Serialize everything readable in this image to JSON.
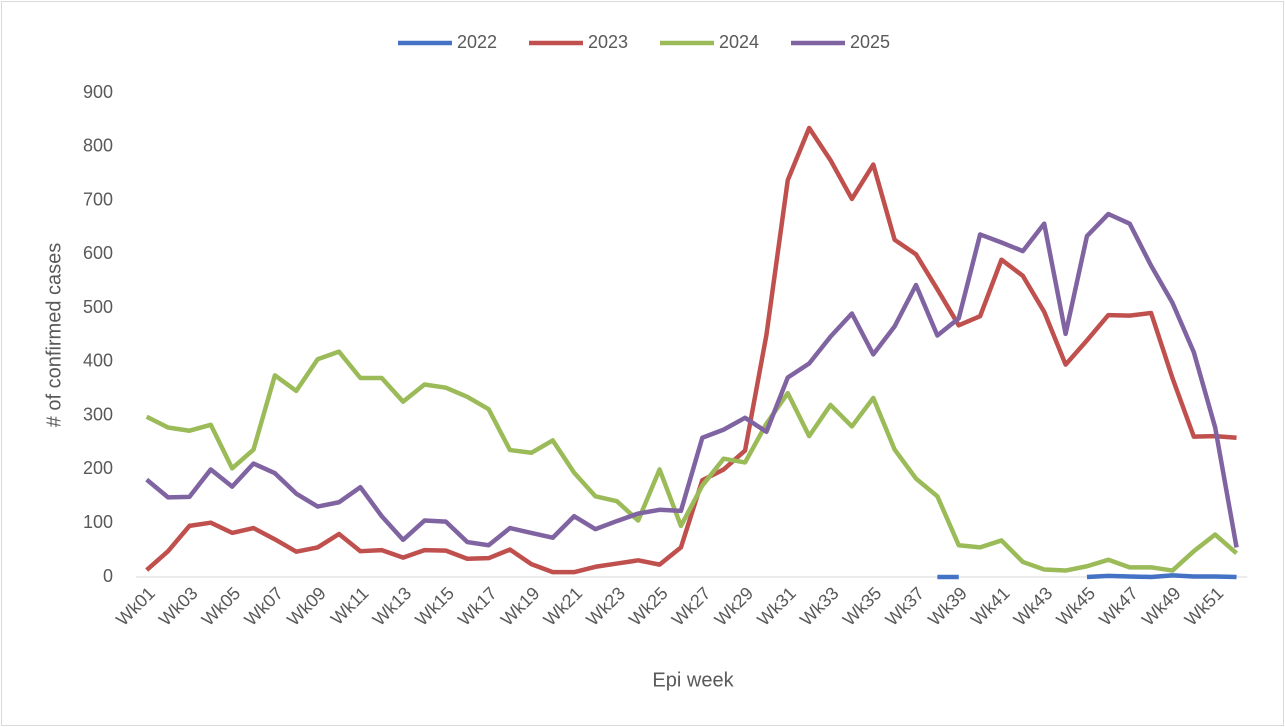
{
  "chart_data": {
    "type": "line",
    "x_label": "Epi week",
    "y_label": "# of confirmed cases",
    "categories": [
      "Wk01",
      null,
      "Wk03",
      null,
      "Wk05",
      null,
      "Wk07",
      null,
      "Wk09",
      null,
      "Wk11",
      null,
      "Wk13",
      null,
      "Wk15",
      null,
      "Wk17",
      null,
      "Wk19",
      null,
      "Wk21",
      null,
      "Wk23",
      null,
      "Wk25",
      null,
      "Wk27",
      null,
      "Wk29",
      null,
      "Wk31",
      null,
      "Wk33",
      null,
      "Wk35",
      null,
      "Wk37",
      null,
      "Wk39",
      null,
      "Wk41",
      null,
      "Wk43",
      null,
      "Wk45",
      null,
      "Wk47",
      null,
      "Wk49",
      null,
      "Wk51",
      null
    ],
    "series": [
      {
        "name": "2022",
        "color": "#4472c4",
        "values": [
          null,
          null,
          null,
          null,
          null,
          null,
          null,
          null,
          null,
          null,
          null,
          null,
          null,
          null,
          null,
          null,
          null,
          null,
          null,
          null,
          null,
          null,
          null,
          null,
          null,
          null,
          null,
          null,
          null,
          null,
          null,
          null,
          null,
          null,
          null,
          null,
          null,
          0,
          0,
          null,
          null,
          null,
          null,
          null,
          0,
          2,
          1,
          0,
          3,
          1,
          1,
          0
        ]
      },
      {
        "name": "2023",
        "color": "#c0504d",
        "values": [
          13,
          48,
          95,
          101,
          82,
          91,
          70,
          47,
          55,
          80,
          48,
          50,
          36,
          50,
          49,
          34,
          35,
          51,
          24,
          9,
          9,
          19,
          25,
          31,
          23,
          55,
          180,
          200,
          235,
          450,
          738,
          835,
          775,
          703,
          767,
          627,
          600,
          535,
          468,
          485,
          590,
          560,
          493,
          395,
          440,
          487,
          486,
          491,
          370,
          261,
          262,
          259
        ]
      },
      {
        "name": "2024",
        "color": "#9bbb59",
        "values": [
          298,
          278,
          272,
          283,
          202,
          237,
          375,
          346,
          405,
          419,
          370,
          370,
          326,
          358,
          352,
          335,
          312,
          236,
          231,
          254,
          194,
          150,
          141,
          105,
          200,
          95,
          170,
          220,
          213,
          285,
          342,
          262,
          320,
          280,
          333,
          237,
          183,
          150,
          59,
          55,
          68,
          28,
          14,
          12,
          20,
          32,
          18,
          18,
          12,
          48,
          79,
          44
        ]
      },
      {
        "name": "2025",
        "color": "#8064a2",
        "values": [
          181,
          148,
          149,
          200,
          168,
          211,
          193,
          155,
          131,
          139,
          167,
          113,
          69,
          105,
          103,
          65,
          59,
          91,
          82,
          73,
          113,
          89,
          104,
          118,
          125,
          123,
          259,
          274,
          296,
          270,
          371,
          397,
          447,
          490,
          414,
          466,
          543,
          449,
          481,
          637,
          622,
          606,
          657,
          452,
          634,
          675,
          657,
          579,
          510,
          418,
          278,
          55
        ]
      }
    ],
    "ylim": [
      0,
      900
    ],
    "yticks": [
      0,
      100,
      200,
      300,
      400,
      500,
      600,
      700,
      800,
      900
    ],
    "grid": false,
    "legend": "top"
  }
}
